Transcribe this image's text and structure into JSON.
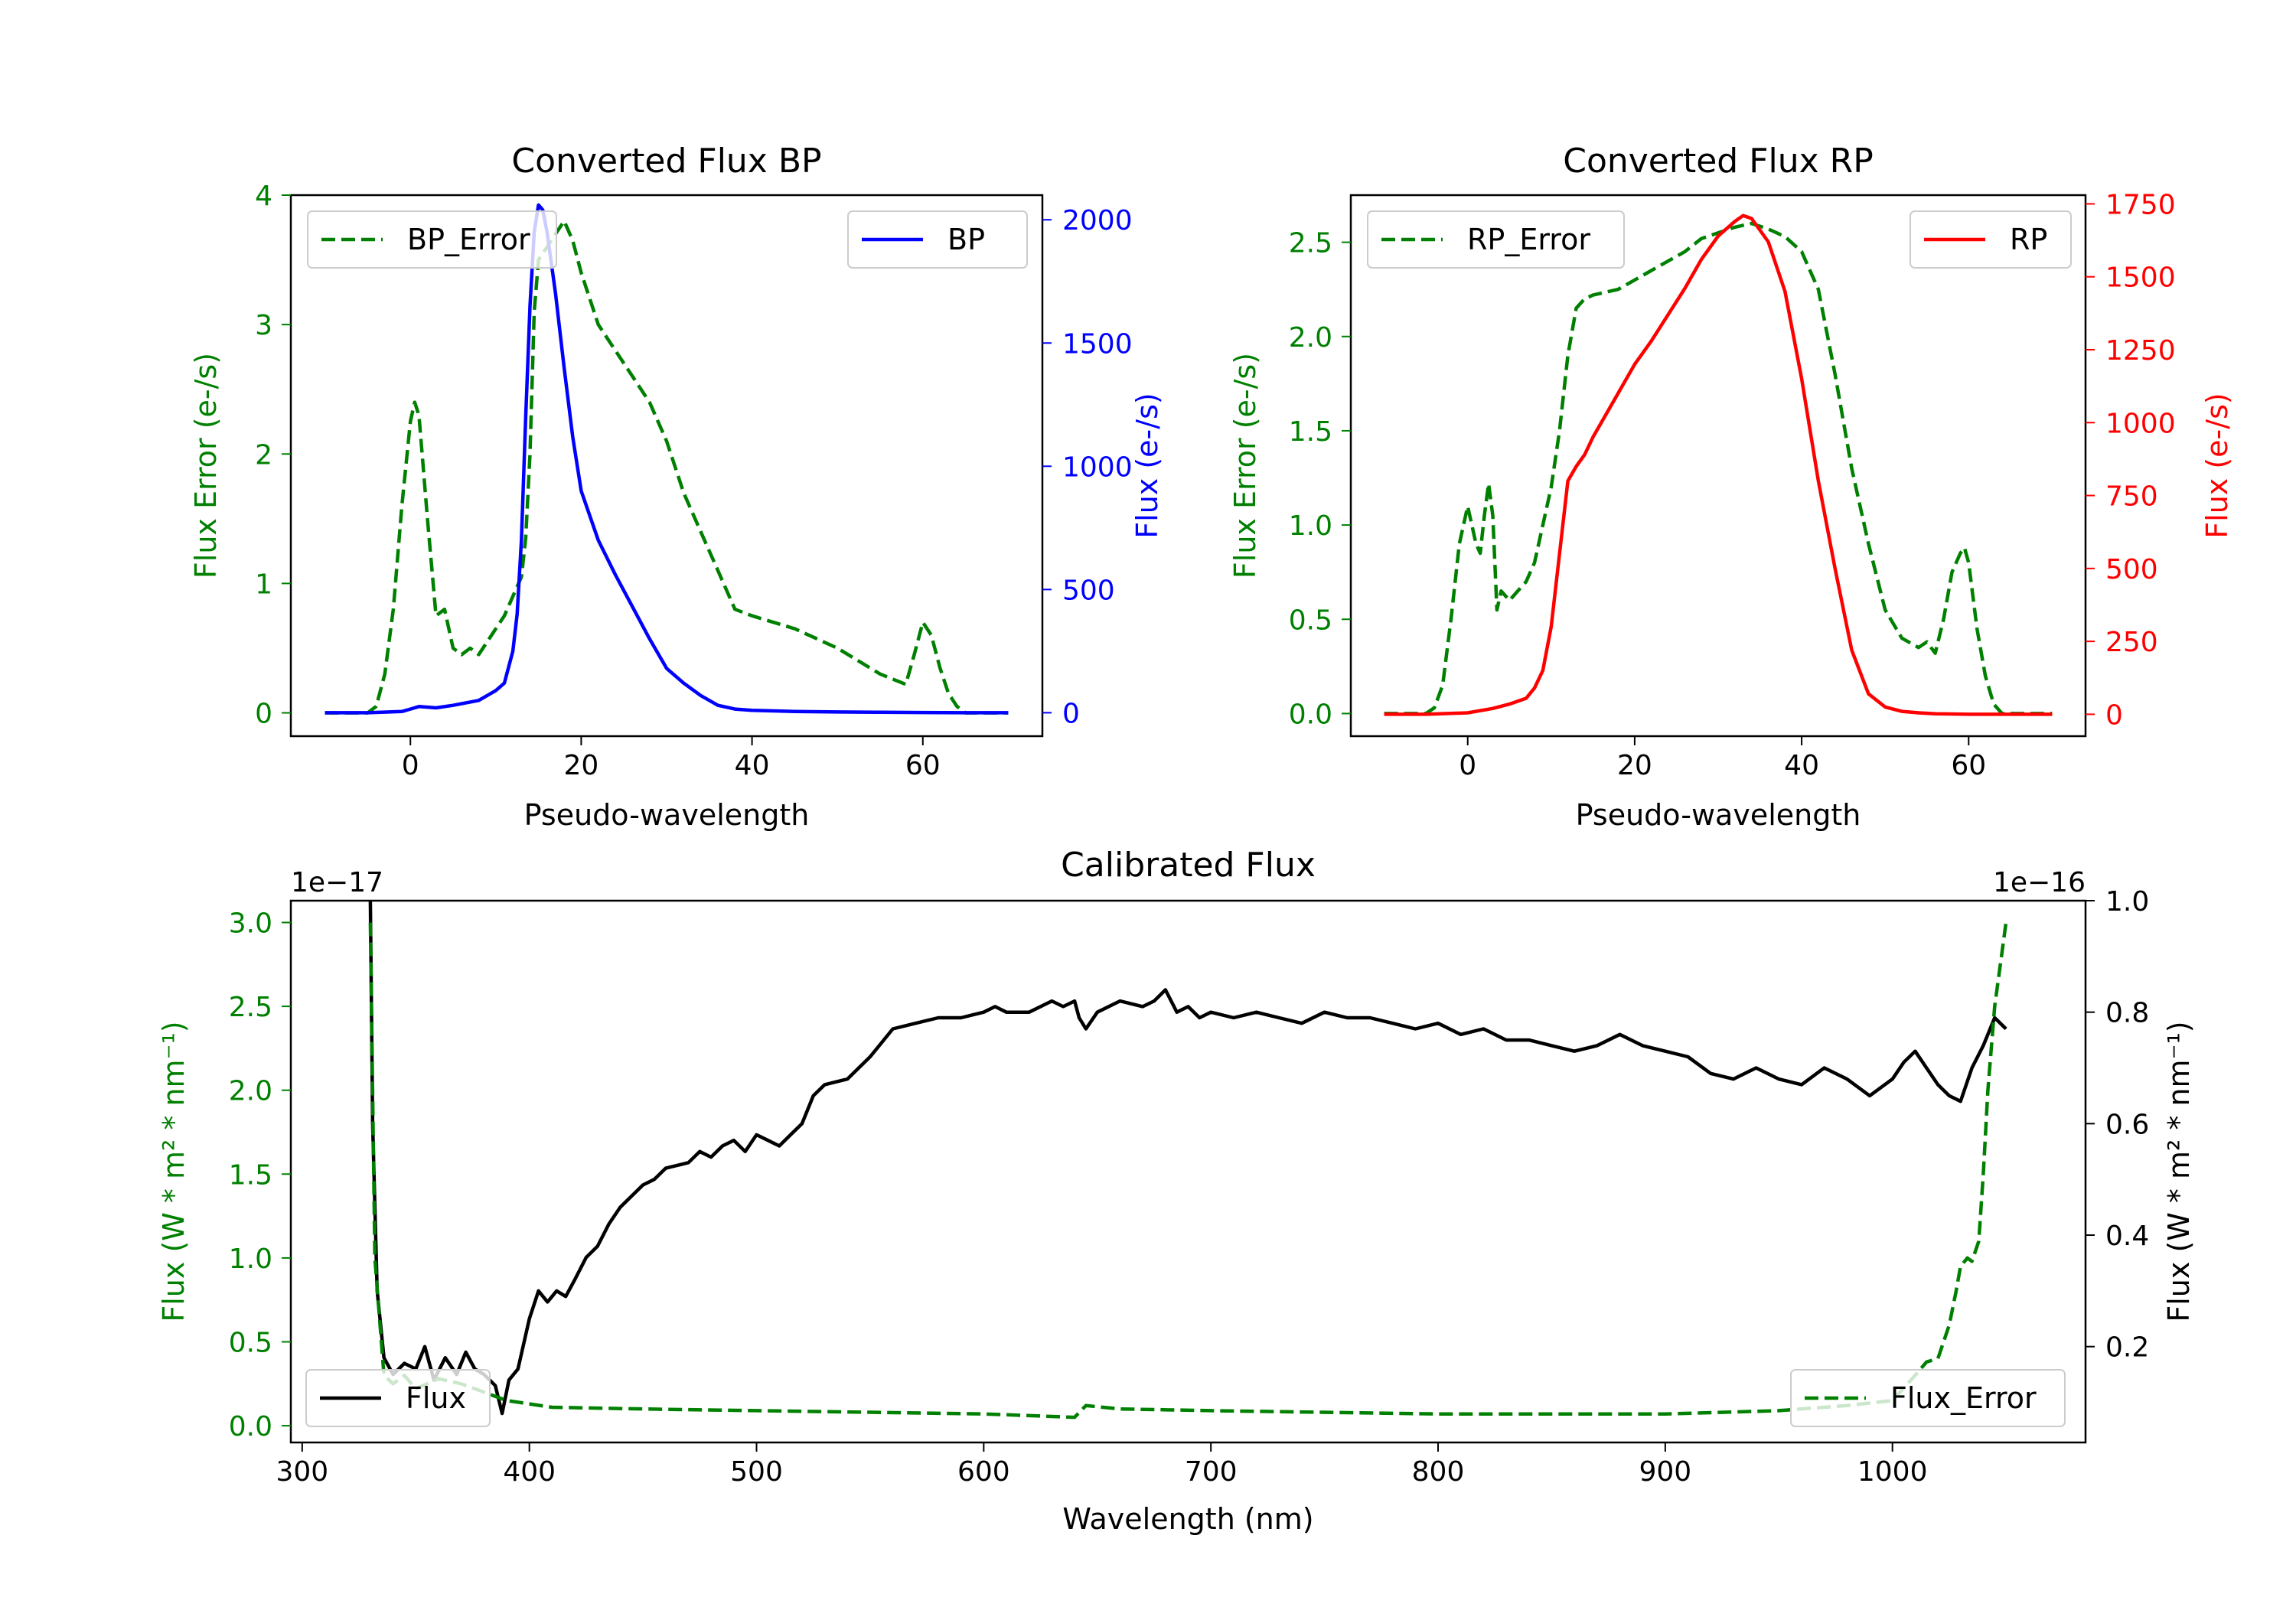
{
  "colors": {
    "green": "#008000",
    "blue": "#0000ff",
    "red": "#ff0000",
    "black": "#000000"
  },
  "chart_data": [
    {
      "id": "bp",
      "type": "line",
      "title": "Converted Flux BP",
      "xlabel": "Pseudo-wavelength",
      "ylabel_left": "Flux Error (e-/s)",
      "ylabel_right": "Flux (e-/s)",
      "xlim": [
        -14,
        74
      ],
      "ylim_left": [
        -0.18,
        4.0
      ],
      "ylim_right": [
        -95,
        2100
      ],
      "x_ticks": [
        0,
        20,
        40,
        60
      ],
      "y_ticks_left": [
        0,
        1,
        2,
        3,
        4
      ],
      "y_ticks_right": [
        0,
        500,
        1000,
        1500,
        2000
      ],
      "legend_left": "BP_Error",
      "legend_right": "BP",
      "series": [
        {
          "name": "BP_Error",
          "axis": "left",
          "style": "dashed",
          "color": "#008000",
          "x": [
            -10,
            -5,
            -4,
            -3,
            -2,
            -1,
            0,
            0.5,
            1,
            2,
            3,
            4,
            5,
            6,
            7,
            8,
            9,
            10,
            11,
            12,
            13,
            13.5,
            14,
            14.5,
            15,
            16,
            17,
            18,
            19,
            20,
            21,
            22,
            23,
            24,
            25,
            26,
            27,
            28,
            30,
            32,
            34,
            36,
            38,
            40,
            45,
            50,
            55,
            58,
            59,
            60,
            61,
            62,
            63,
            64,
            65,
            68,
            70
          ],
          "values": [
            0,
            0,
            0.05,
            0.3,
            0.8,
            1.6,
            2.25,
            2.4,
            2.3,
            1.5,
            0.75,
            0.8,
            0.5,
            0.45,
            0.5,
            0.45,
            0.55,
            0.65,
            0.75,
            0.9,
            1.05,
            1.35,
            2.0,
            3.1,
            3.5,
            3.6,
            3.7,
            3.8,
            3.65,
            3.4,
            3.2,
            3.0,
            2.9,
            2.8,
            2.7,
            2.6,
            2.5,
            2.4,
            2.1,
            1.7,
            1.4,
            1.1,
            0.8,
            0.75,
            0.65,
            0.5,
            0.3,
            0.22,
            0.45,
            0.7,
            0.6,
            0.35,
            0.15,
            0.05,
            0,
            0,
            0
          ]
        },
        {
          "name": "BP",
          "axis": "right",
          "style": "solid",
          "color": "#0000ff",
          "x": [
            -10,
            -5,
            -1,
            0,
            1,
            3,
            5,
            8,
            10,
            11,
            12,
            12.5,
            13,
            13.5,
            14,
            14.5,
            15,
            15.5,
            16,
            17,
            18,
            19,
            20,
            22,
            24,
            26,
            28,
            30,
            32,
            34,
            36,
            38,
            40,
            45,
            50,
            55,
            60,
            65,
            70
          ],
          "values": [
            0,
            0,
            5,
            15,
            25,
            20,
            30,
            50,
            90,
            120,
            250,
            400,
            700,
            1200,
            1650,
            1950,
            2060,
            2040,
            1950,
            1700,
            1400,
            1120,
            900,
            700,
            560,
            430,
            300,
            180,
            120,
            70,
            30,
            15,
            10,
            5,
            3,
            2,
            1,
            0,
            0
          ]
        }
      ]
    },
    {
      "id": "rp",
      "type": "line",
      "title": "Converted Flux RP",
      "xlabel": "Pseudo-wavelength",
      "ylabel_left": "Flux Error (e-/s)",
      "ylabel_right": "Flux (e-/s)",
      "xlim": [
        -14,
        74
      ],
      "ylim_left": [
        -0.12,
        2.75
      ],
      "ylim_right": [
        -75,
        1780
      ],
      "x_ticks": [
        0,
        20,
        40,
        60
      ],
      "y_ticks_left": [
        0.0,
        0.5,
        1.0,
        1.5,
        2.0,
        2.5
      ],
      "y_ticks_left_labels": [
        "0.0",
        "0.5",
        "1.0",
        "1.5",
        "2.0",
        "2.5"
      ],
      "y_ticks_right": [
        0,
        250,
        500,
        750,
        1000,
        1250,
        1500,
        1750
      ],
      "legend_left": "RP_Error",
      "legend_right": "RP",
      "series": [
        {
          "name": "RP_Error",
          "axis": "left",
          "style": "dashed",
          "color": "#008000",
          "x": [
            -10,
            -5,
            -4,
            -3,
            -2,
            -1,
            0,
            1,
            1.5,
            2,
            2.5,
            3,
            3.5,
            4,
            5,
            6,
            7,
            8,
            9,
            10,
            11,
            12,
            13,
            14,
            15,
            18,
            20,
            22,
            24,
            26,
            28,
            30,
            32,
            34,
            36,
            38,
            40,
            42,
            44,
            46,
            48,
            50,
            52,
            54,
            55,
            56,
            57,
            58,
            59,
            59.5,
            60,
            61,
            62,
            63,
            64,
            65,
            68,
            70
          ],
          "values": [
            0,
            0,
            0.03,
            0.15,
            0.5,
            0.9,
            1.1,
            0.9,
            0.85,
            1.05,
            1.22,
            1.05,
            0.55,
            0.65,
            0.6,
            0.65,
            0.7,
            0.8,
            1.0,
            1.2,
            1.5,
            1.9,
            2.15,
            2.2,
            2.22,
            2.25,
            2.3,
            2.35,
            2.4,
            2.45,
            2.52,
            2.55,
            2.58,
            2.6,
            2.57,
            2.53,
            2.45,
            2.25,
            1.8,
            1.3,
            0.9,
            0.55,
            0.4,
            0.35,
            0.38,
            0.32,
            0.5,
            0.75,
            0.85,
            0.88,
            0.8,
            0.45,
            0.2,
            0.05,
            0,
            0,
            0,
            0
          ]
        },
        {
          "name": "RP",
          "axis": "right",
          "style": "solid",
          "color": "#ff0000",
          "x": [
            -10,
            -5,
            0,
            3,
            5,
            7,
            8,
            9,
            10,
            11,
            12,
            13,
            14,
            15,
            16,
            18,
            20,
            22,
            24,
            26,
            28,
            30,
            32,
            33,
            34,
            36,
            38,
            40,
            42,
            44,
            46,
            48,
            50,
            52,
            54,
            56,
            60,
            65,
            70
          ],
          "values": [
            0,
            0,
            5,
            20,
            35,
            55,
            90,
            150,
            300,
            550,
            800,
            850,
            890,
            950,
            1000,
            1100,
            1200,
            1280,
            1370,
            1460,
            1560,
            1640,
            1690,
            1710,
            1700,
            1620,
            1450,
            1150,
            800,
            500,
            220,
            70,
            25,
            10,
            5,
            2,
            0,
            0,
            0
          ]
        }
      ]
    },
    {
      "id": "calibrated",
      "type": "line",
      "title": "Calibrated Flux",
      "xlabel": "Wavelength (nm)",
      "ylabel_left": "Flux (W * m² * nm⁻¹)",
      "ylabel_right": "Flux (W * m² * nm⁻¹)",
      "offset_left": "1e−17",
      "offset_right": "1e−16",
      "xlim": [
        295,
        1085
      ],
      "ylim_left": [
        -0.1,
        3.13
      ],
      "ylim_right": [
        0.028,
        1.0
      ],
      "x_ticks": [
        300,
        400,
        500,
        600,
        700,
        800,
        900,
        1000
      ],
      "y_ticks_left": [
        0.0,
        0.5,
        1.0,
        1.5,
        2.0,
        2.5,
        3.0
      ],
      "y_ticks_left_labels": [
        "0.0",
        "0.5",
        "1.0",
        "1.5",
        "2.0",
        "2.5",
        "3.0"
      ],
      "y_ticks_right": [
        0.2,
        0.4,
        0.6,
        0.8,
        1.0
      ],
      "y_ticks_right_labels": [
        "0.2",
        "0.4",
        "0.6",
        "0.8",
        "1.0"
      ],
      "legend_left": "Flux",
      "legend_right": "Flux_Error",
      "series": [
        {
          "name": "Flux",
          "axis": "right",
          "style": "solid",
          "color": "#000000",
          "x": [
            330,
            331,
            333,
            336,
            340,
            345,
            350,
            354,
            358,
            363,
            368,
            372,
            376,
            380,
            385,
            388,
            391,
            395,
            400,
            404,
            408,
            412,
            416,
            420,
            425,
            430,
            435,
            440,
            445,
            450,
            455,
            460,
            470,
            475,
            480,
            485,
            490,
            495,
            500,
            505,
            510,
            515,
            520,
            525,
            530,
            540,
            550,
            560,
            570,
            580,
            590,
            600,
            605,
            610,
            620,
            630,
            635,
            640,
            642,
            645,
            650,
            660,
            670,
            675,
            680,
            685,
            690,
            695,
            700,
            710,
            720,
            730,
            740,
            750,
            760,
            770,
            780,
            790,
            800,
            810,
            820,
            830,
            840,
            850,
            860,
            870,
            880,
            890,
            900,
            910,
            920,
            930,
            940,
            950,
            960,
            970,
            980,
            990,
            1000,
            1005,
            1010,
            1015,
            1020,
            1025,
            1030,
            1035,
            1040,
            1045,
            1050
          ],
          "values": [
            1.0,
            0.6,
            0.3,
            0.18,
            0.15,
            0.17,
            0.16,
            0.2,
            0.14,
            0.18,
            0.15,
            0.19,
            0.16,
            0.15,
            0.13,
            0.08,
            0.14,
            0.16,
            0.25,
            0.3,
            0.28,
            0.3,
            0.29,
            0.32,
            0.36,
            0.38,
            0.42,
            0.45,
            0.47,
            0.49,
            0.5,
            0.52,
            0.53,
            0.55,
            0.54,
            0.56,
            0.57,
            0.55,
            0.58,
            0.57,
            0.56,
            0.58,
            0.6,
            0.65,
            0.67,
            0.68,
            0.72,
            0.77,
            0.78,
            0.79,
            0.79,
            0.8,
            0.81,
            0.8,
            0.8,
            0.82,
            0.81,
            0.82,
            0.79,
            0.77,
            0.8,
            0.82,
            0.81,
            0.82,
            0.84,
            0.8,
            0.81,
            0.79,
            0.8,
            0.79,
            0.8,
            0.79,
            0.78,
            0.8,
            0.79,
            0.79,
            0.78,
            0.77,
            0.78,
            0.76,
            0.77,
            0.75,
            0.75,
            0.74,
            0.73,
            0.74,
            0.76,
            0.74,
            0.73,
            0.72,
            0.69,
            0.68,
            0.7,
            0.68,
            0.67,
            0.7,
            0.68,
            0.65,
            0.68,
            0.71,
            0.73,
            0.7,
            0.67,
            0.65,
            0.64,
            0.7,
            0.74,
            0.79,
            0.77
          ]
        },
        {
          "name": "Flux_Error",
          "axis": "left",
          "style": "dashed",
          "color": "#008000",
          "x": [
            330,
            332,
            336,
            340,
            345,
            350,
            360,
            370,
            380,
            390,
            400,
            410,
            450,
            500,
            550,
            600,
            640,
            645,
            660,
            700,
            800,
            900,
            950,
            980,
            1000,
            1010,
            1015,
            1020,
            1025,
            1028,
            1030,
            1033,
            1035,
            1038,
            1040,
            1042,
            1045,
            1048,
            1050
          ],
          "values": [
            3.0,
            1.0,
            0.3,
            0.25,
            0.3,
            0.22,
            0.28,
            0.25,
            0.2,
            0.15,
            0.13,
            0.11,
            0.1,
            0.09,
            0.08,
            0.07,
            0.05,
            0.12,
            0.1,
            0.09,
            0.07,
            0.07,
            0.09,
            0.12,
            0.15,
            0.3,
            0.38,
            0.4,
            0.6,
            0.8,
            0.95,
            1.0,
            0.98,
            1.1,
            1.5,
            2.0,
            2.5,
            2.8,
            3.0
          ]
        }
      ]
    }
  ]
}
